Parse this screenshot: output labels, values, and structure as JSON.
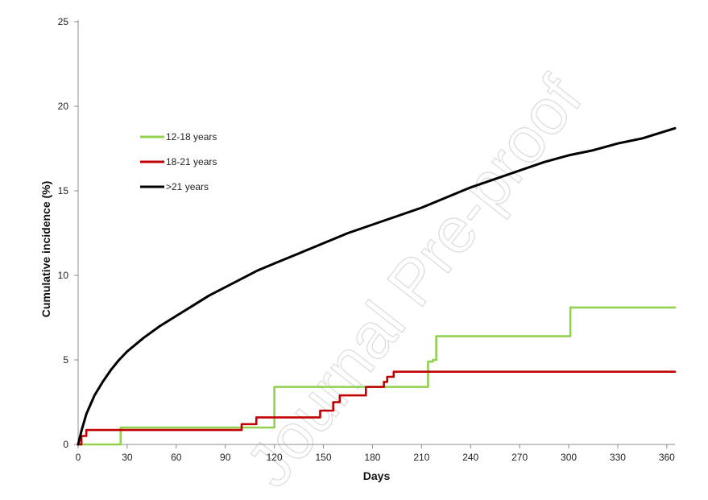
{
  "watermark": "Journal Pre-proof",
  "chart_data": {
    "type": "line",
    "xlabel": "Days",
    "ylabel": "Cumulative incidence (%)",
    "xlim": [
      0,
      365
    ],
    "ylim": [
      0,
      25
    ],
    "x_ticks": [
      0,
      30,
      60,
      90,
      120,
      150,
      180,
      210,
      240,
      270,
      300,
      330,
      360
    ],
    "y_ticks": [
      0,
      5,
      10,
      15,
      20,
      25
    ],
    "grid": false,
    "legend_position": "upper-left",
    "series": [
      {
        "name": "12-18 years",
        "color": "#92d050",
        "step": true,
        "x": [
          0,
          26,
          26,
          100,
          100,
          120,
          120,
          214,
          214,
          217,
          217,
          219,
          219,
          301,
          301,
          365
        ],
        "y": [
          0,
          0,
          1.0,
          1.0,
          1.0,
          1.0,
          3.4,
          3.4,
          4.9,
          4.9,
          5.0,
          5.0,
          6.4,
          6.4,
          8.1,
          8.1
        ]
      },
      {
        "name": "18-21 years",
        "color": "#c00000",
        "step": true,
        "x": [
          0,
          2,
          2,
          5,
          5,
          100,
          100,
          109,
          109,
          148,
          148,
          156,
          156,
          160,
          160,
          176,
          176,
          187,
          187,
          189,
          189,
          193,
          193,
          365
        ],
        "y": [
          0,
          0,
          0.5,
          0.5,
          0.85,
          0.85,
          1.2,
          1.2,
          1.6,
          1.6,
          2.0,
          2.0,
          2.5,
          2.5,
          2.9,
          2.9,
          3.4,
          3.4,
          3.7,
          3.7,
          4.0,
          4.0,
          4.3,
          4.3
        ]
      },
      {
        "name": ">21 years",
        "color": "#000000",
        "step": false,
        "x": [
          0,
          2,
          5,
          10,
          15,
          20,
          25,
          30,
          40,
          50,
          60,
          70,
          80,
          90,
          100,
          110,
          120,
          135,
          150,
          165,
          180,
          195,
          210,
          225,
          240,
          255,
          270,
          285,
          300,
          315,
          330,
          345,
          355,
          365
        ],
        "y": [
          0,
          0.8,
          1.8,
          2.9,
          3.7,
          4.4,
          5.0,
          5.5,
          6.3,
          7.0,
          7.6,
          8.2,
          8.8,
          9.3,
          9.8,
          10.3,
          10.7,
          11.3,
          11.9,
          12.5,
          13.0,
          13.5,
          14.0,
          14.6,
          15.2,
          15.7,
          16.2,
          16.7,
          17.1,
          17.4,
          17.8,
          18.1,
          18.4,
          18.7
        ]
      }
    ]
  }
}
